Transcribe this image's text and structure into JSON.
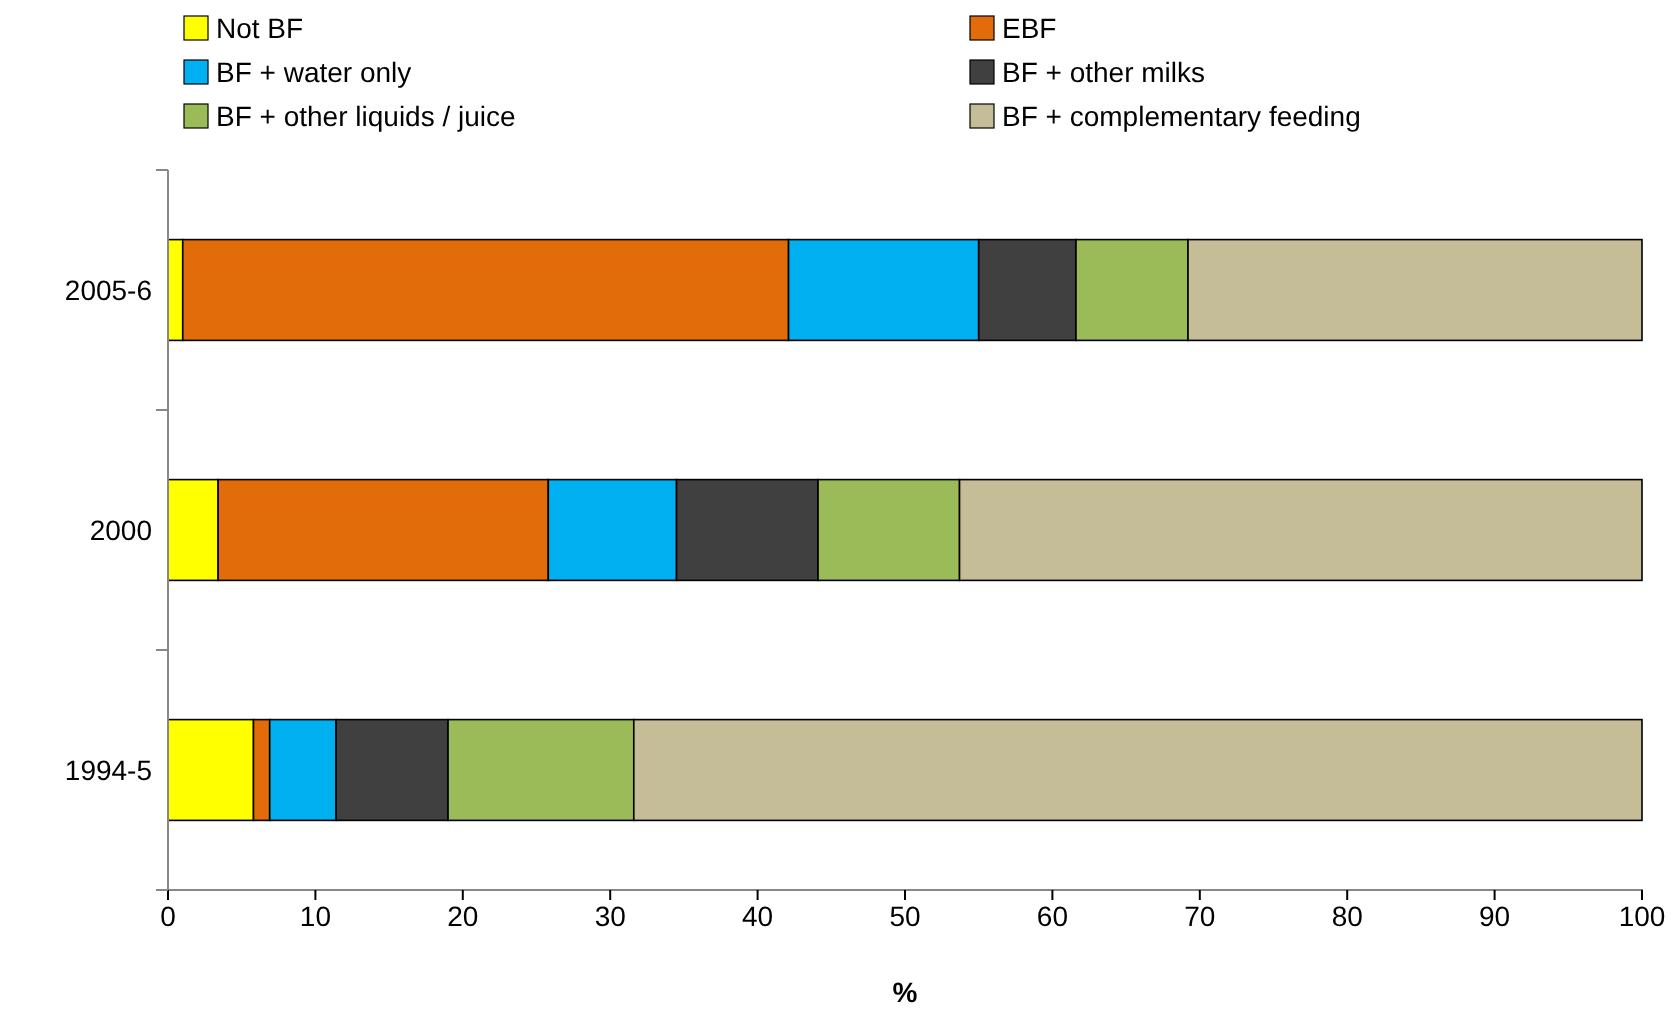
{
  "chart_data": {
    "type": "bar",
    "orientation": "horizontal",
    "stacked": true,
    "xlabel": "%",
    "categories": [
      "2005-6",
      "2000",
      "1994-5"
    ],
    "xlim": [
      0,
      100
    ],
    "xticks": [
      0,
      10,
      20,
      30,
      40,
      50,
      60,
      70,
      80,
      90,
      100
    ],
    "grid": false,
    "legend": "top",
    "series": [
      {
        "name": "Not BF",
        "color": "#ffff00",
        "values": [
          1.0,
          3.4,
          5.8
        ]
      },
      {
        "name": "EBF",
        "color": "#e36c0a",
        "values": [
          41.1,
          22.4,
          1.1
        ]
      },
      {
        "name": "BF + water only",
        "color": "#00b0f0",
        "values": [
          12.9,
          8.7,
          4.5
        ]
      },
      {
        "name": "BF + other milks",
        "color": "#404040",
        "values": [
          6.6,
          9.6,
          7.6
        ]
      },
      {
        "name": "BF + other liquids / juice",
        "color": "#9bbb59",
        "values": [
          7.6,
          9.6,
          12.6
        ]
      },
      {
        "name": "BF + complementary feeding",
        "color": "#c4bd97",
        "values": [
          30.8,
          46.3,
          68.4
        ]
      }
    ]
  }
}
